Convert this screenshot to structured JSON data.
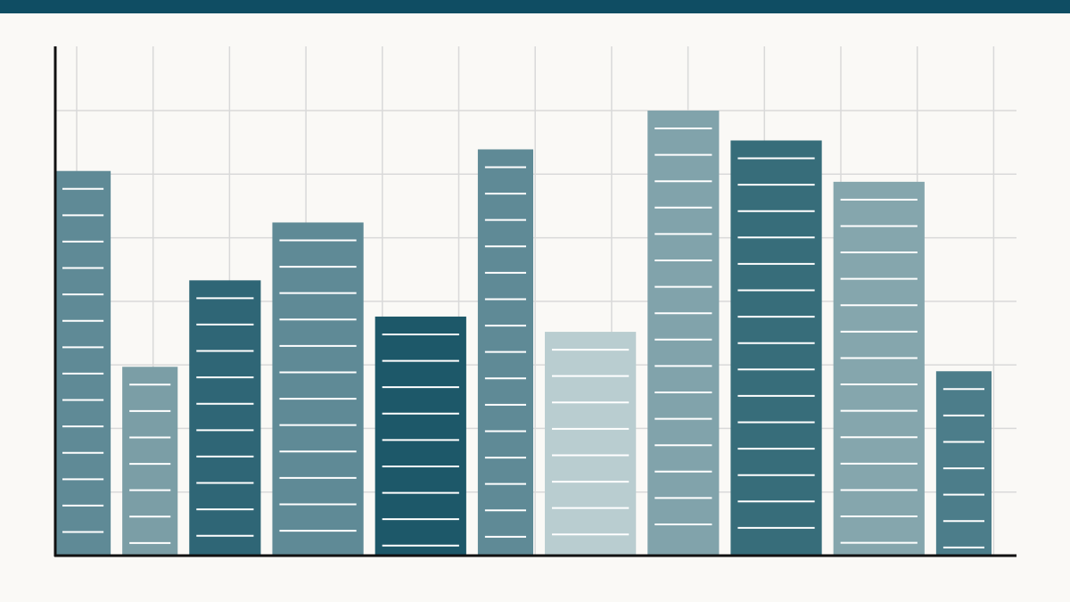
{
  "colors": {
    "background": "#faf9f6",
    "top_bar": "#0f4d63",
    "grid": "#d9d9d9",
    "axis": "#111111",
    "stripe": "#ffffff"
  },
  "chart_data": {
    "type": "bar",
    "title": "",
    "xlabel": "",
    "ylabel": "",
    "grid": true,
    "ylim": [
      0,
      8
    ],
    "values": [
      6.05,
      2.97,
      4.33,
      5.24,
      3.76,
      6.39,
      3.52,
      7.0,
      6.53,
      5.88,
      2.9
    ],
    "bar_colors": [
      "#5f8a96",
      "#7b9ea6",
      "#2f6676",
      "#5f8a96",
      "#1d5869",
      "#5f8a96",
      "#b9cdd0",
      "#81a3ab",
      "#376d7a",
      "#85a6ad",
      "#4c7d8a"
    ],
    "bar_width_weights": [
      62,
      62,
      80,
      102,
      102,
      62,
      102,
      80,
      102,
      102,
      62
    ]
  }
}
